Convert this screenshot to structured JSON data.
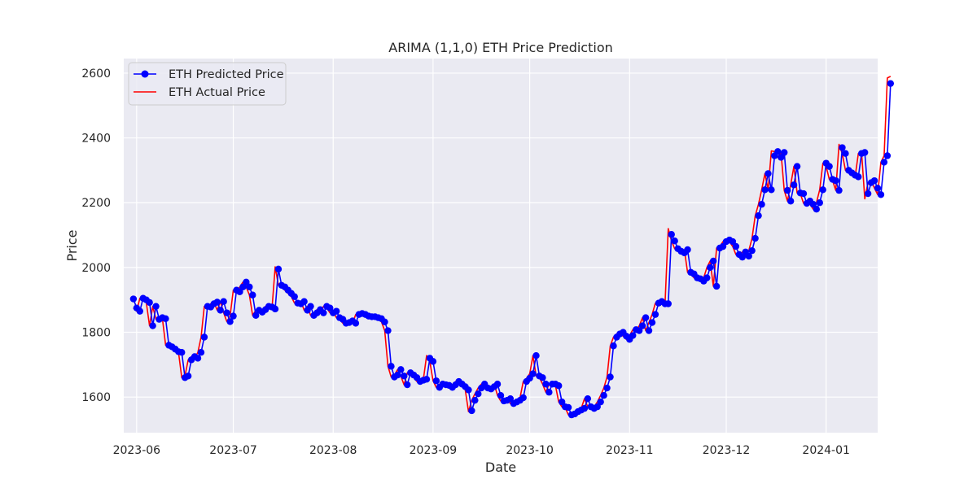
{
  "chart_data": {
    "type": "line",
    "title": "ARIMA (1,1,0) ETH Price Prediction",
    "xlabel": "Date",
    "ylabel": "Price",
    "xlim": [
      "2023-05-28",
      "2024-01-17"
    ],
    "ylim": [
      1490,
      2645
    ],
    "x_ticks": [
      "2023-06-01",
      "2023-07-01",
      "2023-08-01",
      "2023-09-01",
      "2023-10-01",
      "2023-11-01",
      "2023-12-01",
      "2024-01-01"
    ],
    "x_tick_labels": [
      "2023-06",
      "2023-07",
      "2023-08",
      "2023-09",
      "2023-10",
      "2023-11",
      "2023-12",
      "2024-01"
    ],
    "y_ticks": [
      1600,
      1800,
      2000,
      2200,
      2400,
      2600
    ],
    "y_tick_labels": [
      "1600",
      "1800",
      "2000",
      "2200",
      "2400",
      "2600"
    ],
    "grid": true,
    "legend_position": "upper-left",
    "start_date": "2023-05-31",
    "series": [
      {
        "name": "ETH Predicted Price",
        "color": "#0000ff",
        "marker": "circle",
        "values": [
          1903,
          1875,
          1865,
          1905,
          1900,
          1892,
          1820,
          1880,
          1840,
          1845,
          1842,
          1760,
          1755,
          1748,
          1740,
          1738,
          1660,
          1665,
          1715,
          1725,
          1720,
          1738,
          1785,
          1880,
          1878,
          1888,
          1893,
          1868,
          1895,
          1860,
          1833,
          1850,
          1930,
          1925,
          1940,
          1955,
          1940,
          1915,
          1852,
          1868,
          1862,
          1870,
          1880,
          1878,
          1872,
          1995,
          1945,
          1940,
          1930,
          1920,
          1910,
          1890,
          1888,
          1895,
          1868,
          1880,
          1852,
          1860,
          1870,
          1860,
          1880,
          1875,
          1860,
          1865,
          1845,
          1840,
          1828,
          1830,
          1835,
          1828,
          1855,
          1858,
          1855,
          1850,
          1848,
          1848,
          1845,
          1842,
          1832,
          1805,
          1695,
          1662,
          1668,
          1685,
          1665,
          1638,
          1675,
          1668,
          1660,
          1648,
          1652,
          1655,
          1720,
          1710,
          1650,
          1630,
          1640,
          1638,
          1636,
          1630,
          1638,
          1648,
          1640,
          1632,
          1622,
          1558,
          1590,
          1610,
          1628,
          1640,
          1628,
          1625,
          1632,
          1640,
          1605,
          1588,
          1590,
          1595,
          1580,
          1585,
          1590,
          1598,
          1648,
          1658,
          1672,
          1728,
          1665,
          1660,
          1640,
          1615,
          1640,
          1640,
          1635,
          1585,
          1570,
          1568,
          1545,
          1548,
          1555,
          1560,
          1565,
          1595,
          1570,
          1565,
          1570,
          1585,
          1605,
          1628,
          1662,
          1758,
          1785,
          1795,
          1800,
          1788,
          1778,
          1790,
          1808,
          1805,
          1820,
          1845,
          1805,
          1830,
          1855,
          1890,
          1895,
          1888,
          1888,
          2102,
          2082,
          2058,
          2050,
          2045,
          2055,
          1985,
          1980,
          1968,
          1965,
          1958,
          1968,
          2000,
          2020,
          1942,
          2060,
          2065,
          2080,
          2085,
          2080,
          2065,
          2040,
          2032,
          2048,
          2035,
          2052,
          2090,
          2160,
          2195,
          2240,
          2290,
          2240,
          2345,
          2358,
          2340,
          2355,
          2238,
          2205,
          2255,
          2312,
          2230,
          2228,
          2198,
          2205,
          2195,
          2180,
          2200,
          2240,
          2322,
          2312,
          2272,
          2268,
          2238,
          2370,
          2352,
          2300,
          2292,
          2285,
          2280,
          2352,
          2355,
          2228,
          2262,
          2268,
          2245,
          2225,
          2325,
          2345,
          2568
        ]
      },
      {
        "name": "ETH Actual Price",
        "color": "#ff0000",
        "marker": "none",
        "values": [
          1875,
          1865,
          1905,
          1900,
          1892,
          1820,
          1880,
          1840,
          1845,
          1842,
          1760,
          1755,
          1748,
          1740,
          1738,
          1660,
          1665,
          1715,
          1725,
          1720,
          1738,
          1785,
          1880,
          1878,
          1888,
          1893,
          1868,
          1895,
          1860,
          1833,
          1850,
          1930,
          1925,
          1940,
          1955,
          1940,
          1915,
          1852,
          1868,
          1862,
          1870,
          1880,
          1878,
          1872,
          2002,
          1945,
          1940,
          1930,
          1920,
          1910,
          1890,
          1888,
          1895,
          1868,
          1880,
          1852,
          1860,
          1870,
          1860,
          1880,
          1875,
          1860,
          1865,
          1845,
          1840,
          1828,
          1830,
          1835,
          1828,
          1855,
          1858,
          1855,
          1850,
          1848,
          1848,
          1845,
          1842,
          1832,
          1805,
          1695,
          1662,
          1668,
          1685,
          1665,
          1638,
          1675,
          1668,
          1660,
          1648,
          1652,
          1655,
          1728,
          1710,
          1650,
          1630,
          1640,
          1638,
          1636,
          1630,
          1638,
          1648,
          1640,
          1632,
          1622,
          1555,
          1590,
          1610,
          1628,
          1640,
          1628,
          1625,
          1632,
          1640,
          1605,
          1588,
          1590,
          1595,
          1580,
          1585,
          1590,
          1598,
          1648,
          1658,
          1672,
          1728,
          1665,
          1660,
          1640,
          1615,
          1640,
          1640,
          1635,
          1585,
          1570,
          1568,
          1545,
          1548,
          1555,
          1560,
          1565,
          1595,
          1570,
          1565,
          1570,
          1585,
          1605,
          1628,
          1662,
          1758,
          1785,
          1795,
          1800,
          1788,
          1778,
          1790,
          1808,
          1805,
          1820,
          1845,
          1805,
          1830,
          1855,
          1890,
          1895,
          1888,
          1888,
          2120,
          2082,
          2058,
          2050,
          2045,
          2055,
          1985,
          1980,
          1968,
          1965,
          1958,
          1968,
          2000,
          2020,
          1942,
          2060,
          2065,
          2080,
          2085,
          2080,
          2065,
          2040,
          2032,
          2048,
          2035,
          2052,
          2090,
          2160,
          2195,
          2240,
          2290,
          2240,
          2360,
          2358,
          2340,
          2355,
          2238,
          2205,
          2255,
          2312,
          2230,
          2228,
          2198,
          2205,
          2195,
          2180,
          2200,
          2240,
          2322,
          2312,
          2272,
          2268,
          2238,
          2380,
          2352,
          2300,
          2292,
          2285,
          2280,
          2352,
          2355,
          2212,
          2262,
          2268,
          2245,
          2225,
          2325,
          2345,
          2585,
          2590
        ]
      }
    ]
  }
}
